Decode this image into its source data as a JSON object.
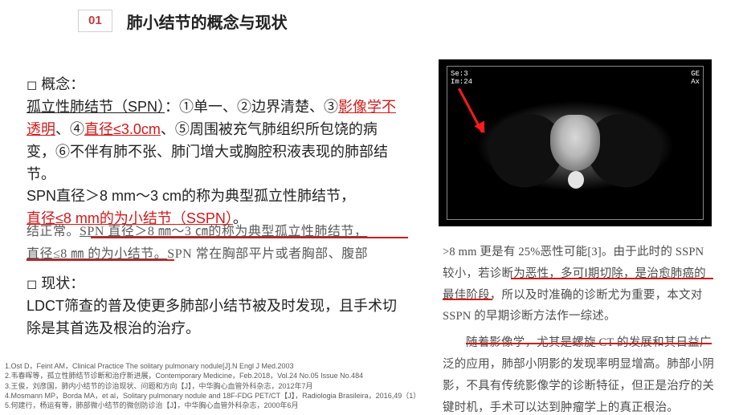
{
  "header": {
    "section_number": "01",
    "title": "肺小结节的概念与现状"
  },
  "concept": {
    "label": "概念：",
    "spn_prefix": "孤立性肺结节（SPN）",
    "sep": "：",
    "p1": "①单一、②边界清楚、③",
    "red1": "影像学不透明",
    "p2": "、④",
    "red2": "直径≤3.0cm",
    "p3": "、⑤周围被充气肺组织所包饶的病变，⑥不伴有肺不张、肺门增大或胸腔积液表现的肺部结节。",
    "line2a": "SPN直径＞8 mm～3 cm的称为典型孤立性肺结节，",
    "line2b_red": "直径≤8 mm的为小结节（SSPN）",
    "line2c": "。"
  },
  "excerpt_left": {
    "l1a": "结正常。",
    "l1b": "SPN 直径＞8 ㎜～3 ㎝的称为典型孤立性肺结节，",
    "l2a": "直径≤8 ㎜ 的为小结节。",
    "l2b": "SPN 常在胸部平片或者胸部、腹部"
  },
  "status": {
    "label": "现状：",
    "text": "LDCT筛查的普及使更多肺部小结节被及时发现，且手术切除是其首选及根治的治疗。"
  },
  "ct_labels": {
    "tl1": "Se:3",
    "tl2": "Im:24",
    "tr1": "GE",
    "tr2": "Ax"
  },
  "excerpt_right": {
    "p1": ">8 mm 更是有 25%恶性可能[3]。由于此时的 SSPN 较小，若诊断为恶性，多可Ⅰ期切除，是治愈肺癌的最佳阶段，所以及时准确的诊断尤为重要，本文对 SSPN 的早期诊断方法作一综述。",
    "p2": "随着影像学，尤其是螺旋 CT 的发展和其日益广泛的应用，肺部小阴影的发现率明显增高。肺部小阴影，不具有传统影像学的诊断特征，但正是治疗的关键时机，手术可以达到肿瘤学上的真正根治。"
  },
  "refs": [
    "1.Ost D，Feint AM，Clinical Practice The solitary pulmonary nodule[J].N Engl J Med.2003",
    "2.韦春晖等，孤立性肺结节诊断和治疗新进展，Contemporary Medicine，Feb.2018，Vol.24 No.05 Issue No.484",
    "3.王俊，刘彦国，肺内小结节的诊治现状、问题和方向【J】，中华胸心血管外科杂志，2012年7月",
    "4.Mosmann MP，Borda MA，et al，Solitary pulmonary nodule and 18F-FDG PET/CT【J】，Radiologia Brasileira，2016,49（1）",
    "5.何建行，杨运有等，肺部微小结节的微创防诊治【J】，中华胸心血管外科杂志，2000年6月"
  ],
  "colors": {
    "accent_red": "#d01b1b",
    "num_red": "#c73a3a",
    "text": "#222222",
    "excerpt_text": "#5a5a5a",
    "bg": "#ffffff",
    "arrow": "#ff1a1a"
  }
}
